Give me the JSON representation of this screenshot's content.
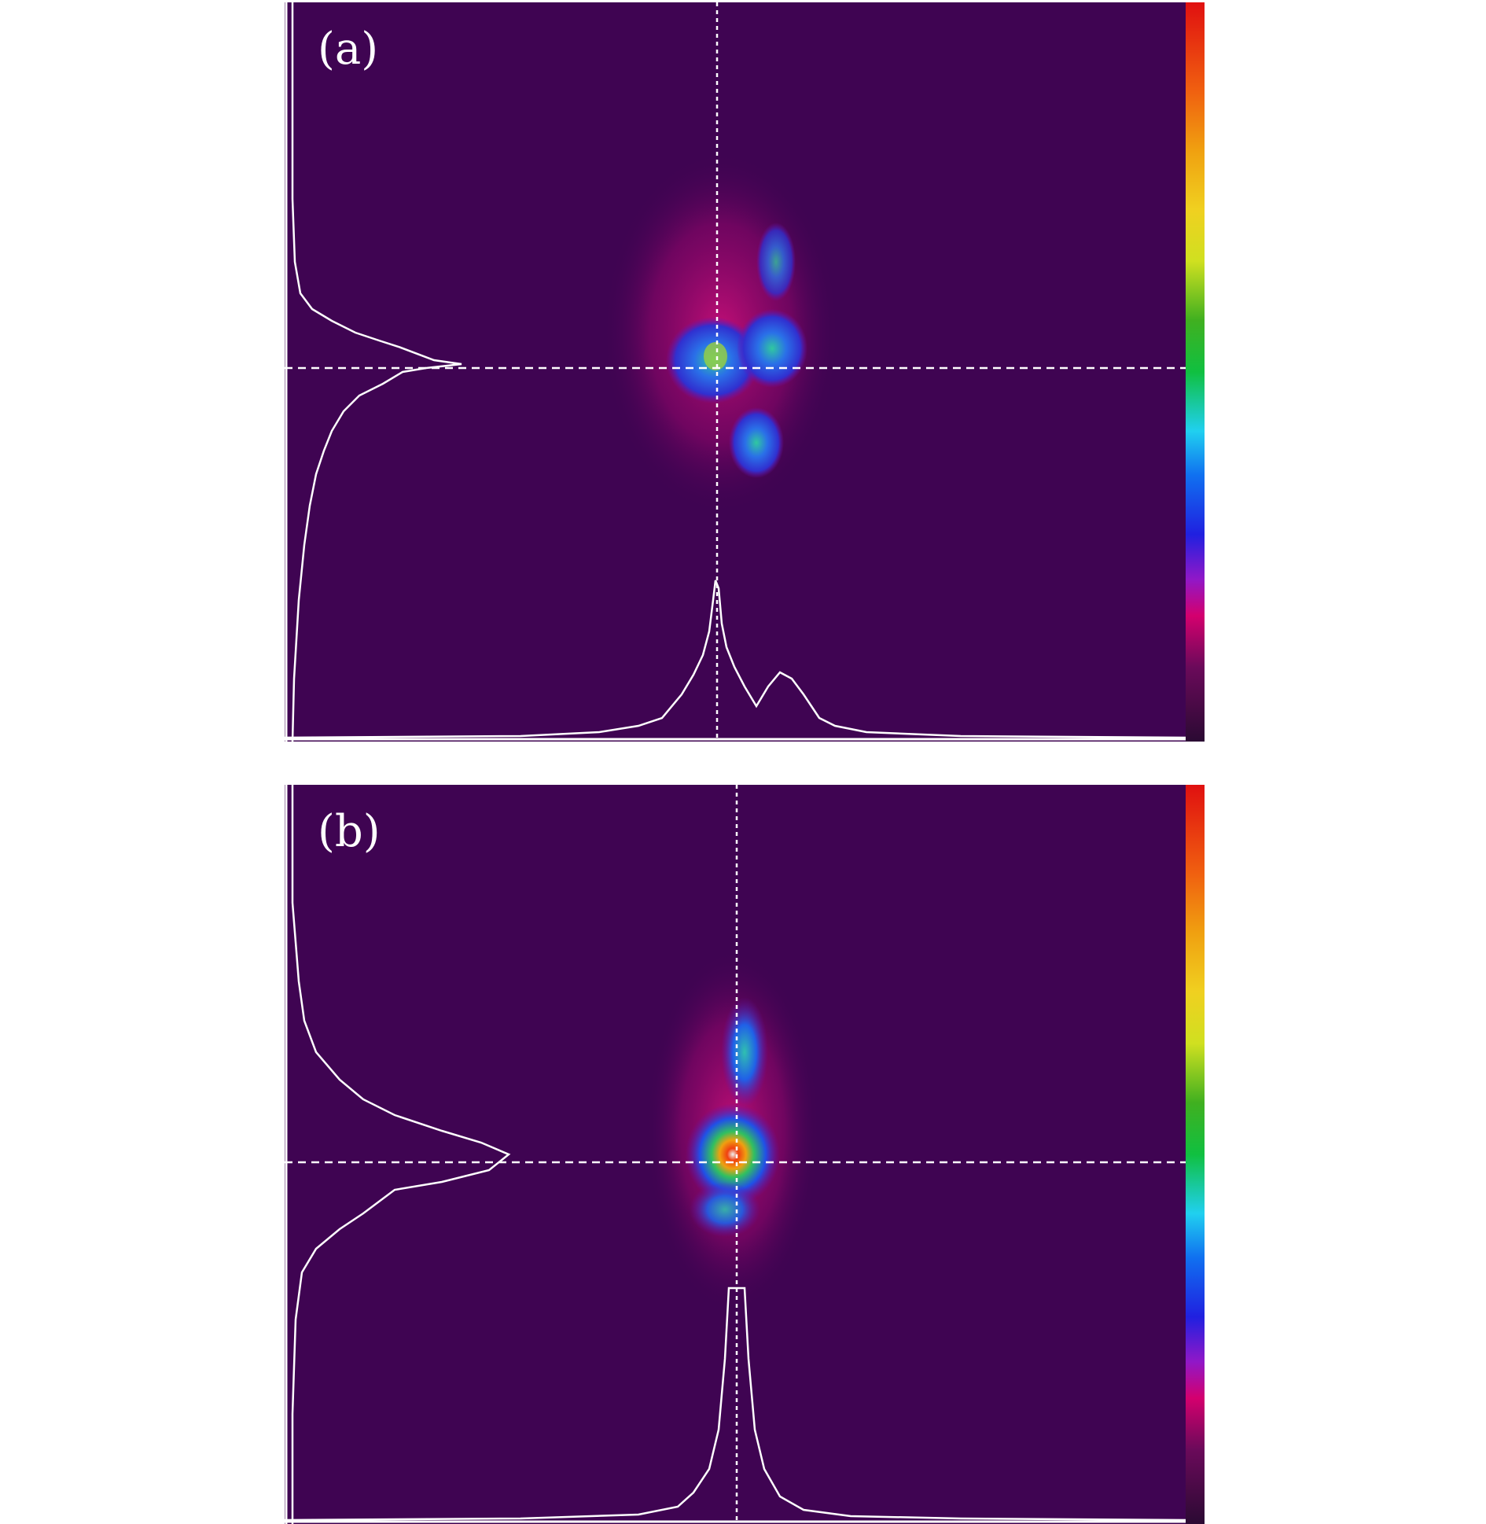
{
  "figure": {
    "panels": [
      {
        "id": "a",
        "label": "(a)"
      },
      {
        "id": "b",
        "label": "(b)"
      }
    ],
    "colors": {
      "background": "#3f0452",
      "crosshair": "#ffffff",
      "profile": "#ffffff",
      "colorbar": [
        "#2b0a33",
        "#5a0a5a",
        "#a0066e",
        "#d4006e",
        "#8c16c8",
        "#2020e0",
        "#1060f0",
        "#20d0f0",
        "#10c040",
        "#20a020",
        "#c0e020",
        "#f0e020",
        "#f0a010",
        "#f06010",
        "#e01010"
      ]
    },
    "colorbar_icon": "colorbar-scale"
  }
}
